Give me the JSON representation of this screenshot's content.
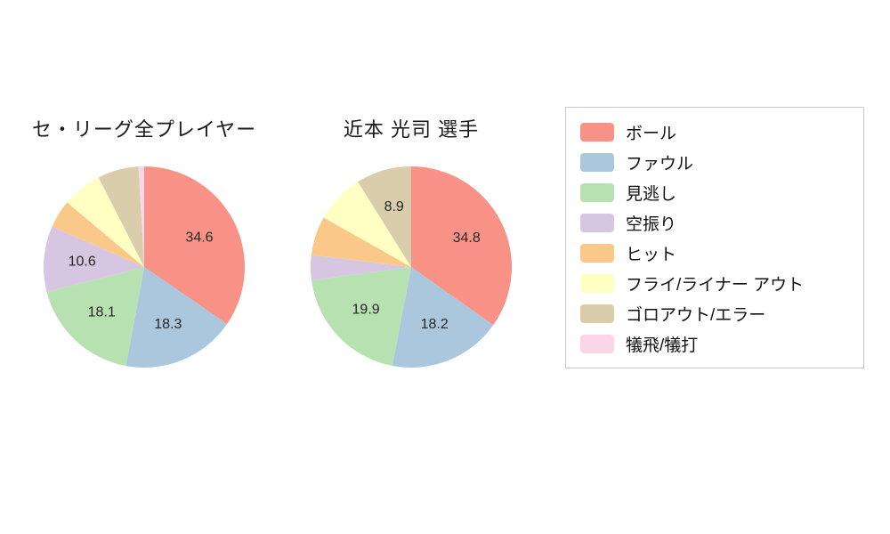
{
  "legend": {
    "items": [
      {
        "label": "ボール",
        "color": "#f99286"
      },
      {
        "label": "ファウル",
        "color": "#abc7dd"
      },
      {
        "label": "見逃し",
        "color": "#b7e1b0"
      },
      {
        "label": "空振り",
        "color": "#d6c6e1"
      },
      {
        "label": "ヒット",
        "color": "#fac98a"
      },
      {
        "label": "フライ/ライナー アウト",
        "color": "#ffffc4"
      },
      {
        "label": "ゴロアウト/エラー",
        "color": "#d9cdab"
      },
      {
        "label": "犠飛/犠打",
        "color": "#fbd6e9"
      }
    ]
  },
  "chart_data": [
    {
      "type": "pie",
      "title": "セ・リーグ全プレイヤー",
      "categories": [
        "ボール",
        "ファウル",
        "見逃し",
        "空振り",
        "ヒット",
        "フライ/ライナー アウト",
        "ゴロアウト/エラー",
        "犠飛/犠打"
      ],
      "values": [
        34.6,
        18.3,
        18.1,
        10.6,
        4.5,
        6.4,
        6.6,
        0.9
      ],
      "slice_labels": [
        "34.6",
        "18.3",
        "18.1",
        "10.6",
        "",
        "",
        "",
        ""
      ],
      "start_angle": "top",
      "direction": "clockwise",
      "legend_position": "right"
    },
    {
      "type": "pie",
      "title": "近本 光司 選手",
      "categories": [
        "ボール",
        "ファウル",
        "見逃し",
        "空振り",
        "ヒット",
        "フライ/ライナー アウト",
        "ゴロアウト/エラー",
        "犠飛/犠打"
      ],
      "values": [
        34.8,
        18.2,
        19.9,
        4.0,
        6.3,
        7.9,
        8.9,
        0
      ],
      "slice_labels": [
        "34.8",
        "18.2",
        "19.9",
        "",
        "",
        "",
        "8.9",
        ""
      ],
      "start_angle": "top",
      "direction": "clockwise",
      "legend_position": "right"
    }
  ]
}
